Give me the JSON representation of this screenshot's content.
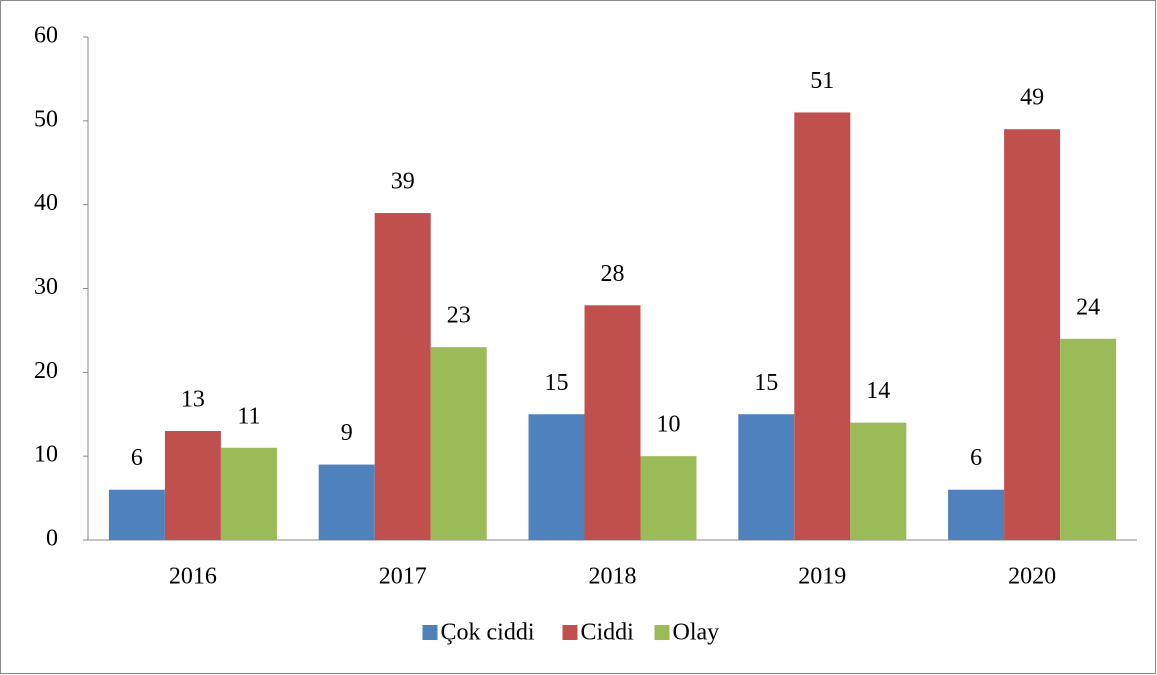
{
  "chart_data": {
    "type": "bar",
    "categories": [
      "2016",
      "2017",
      "2018",
      "2019",
      "2020"
    ],
    "series": [
      {
        "name": "Çok ciddi",
        "color": "#4f81bd",
        "values": [
          6,
          9,
          15,
          15,
          6
        ]
      },
      {
        "name": "Ciddi",
        "color": "#c0504d",
        "values": [
          13,
          39,
          28,
          51,
          49
        ]
      },
      {
        "name": "Olay",
        "color": "#9bbb59",
        "values": [
          11,
          23,
          10,
          14,
          24
        ]
      }
    ],
    "ylim": [
      0,
      60
    ],
    "yticks": [
      0,
      10,
      20,
      30,
      40,
      50,
      60
    ],
    "grid": false,
    "legend": "bottom"
  }
}
